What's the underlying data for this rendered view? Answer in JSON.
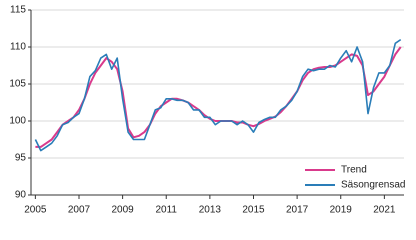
{
  "chart_data": {
    "type": "line",
    "x": [
      2005,
      2005.25,
      2005.5,
      2005.75,
      2006,
      2006.25,
      2006.5,
      2006.75,
      2007,
      2007.25,
      2007.5,
      2007.75,
      2008,
      2008.25,
      2008.5,
      2008.75,
      2009,
      2009.25,
      2009.5,
      2009.75,
      2010,
      2010.25,
      2010.5,
      2010.75,
      2011,
      2011.25,
      2011.5,
      2011.75,
      2012,
      2012.25,
      2012.5,
      2012.75,
      2013,
      2013.25,
      2013.5,
      2013.75,
      2014,
      2014.25,
      2014.5,
      2014.75,
      2015,
      2015.25,
      2015.5,
      2015.75,
      2016,
      2016.25,
      2016.5,
      2016.75,
      2017,
      2017.25,
      2017.5,
      2017.75,
      2018,
      2018.25,
      2018.5,
      2018.75,
      2019,
      2019.25,
      2019.5,
      2019.75,
      2020,
      2020.25,
      2020.5,
      2020.75,
      2021,
      2021.25,
      2021.5,
      2021.75
    ],
    "series": [
      {
        "name": "Trend",
        "color": "#d93a8c",
        "values": [
          96.5,
          96.5,
          97,
          97.5,
          98.5,
          99.5,
          100,
          100.5,
          101.5,
          103,
          105,
          106.5,
          107.5,
          108.5,
          108,
          107,
          104,
          99,
          97.8,
          98,
          98.5,
          99.5,
          101,
          102,
          102.5,
          103,
          103,
          102.8,
          102.5,
          102,
          101.5,
          100.8,
          100.3,
          100,
          100,
          100,
          100,
          99.8,
          99.8,
          99.5,
          99.3,
          99.6,
          100,
          100.3,
          100.6,
          101.2,
          102,
          103,
          104,
          105.5,
          106.5,
          107,
          107.2,
          107.3,
          107.3,
          107.5,
          108,
          108.5,
          109,
          108.8,
          107.5,
          103.5,
          104,
          105,
          106,
          107.5,
          109,
          110
        ]
      },
      {
        "name": "Säsongrensad",
        "color": "#2a7db8",
        "values": [
          97.5,
          96,
          96.5,
          97,
          98,
          99.5,
          99.8,
          100.5,
          101,
          103,
          106,
          106.8,
          108.5,
          109,
          107,
          108.5,
          103,
          98.5,
          97.5,
          97.5,
          97.5,
          99.5,
          101.5,
          101.8,
          103,
          103,
          102.8,
          102.8,
          102.5,
          101.5,
          101.5,
          100.5,
          100.5,
          99.5,
          100,
          100,
          100,
          99.5,
          100,
          99.5,
          98.5,
          99.8,
          100.2,
          100.5,
          100.5,
          101.5,
          102,
          102.8,
          104,
          106,
          107,
          106.8,
          107,
          107,
          107.5,
          107.3,
          108.5,
          109.5,
          108,
          110,
          108,
          101,
          104.5,
          106.5,
          106.5,
          107.5,
          110.5,
          111
        ]
      }
    ],
    "xlim": [
      2004.8,
      2021.9
    ],
    "xticks": [
      2005,
      2007,
      2009,
      2011,
      2013,
      2015,
      2017,
      2019,
      2021
    ],
    "ylim": [
      90,
      115
    ],
    "yticks": [
      90,
      95,
      100,
      105,
      110,
      115
    ],
    "grid": true,
    "legend": "lower right"
  }
}
